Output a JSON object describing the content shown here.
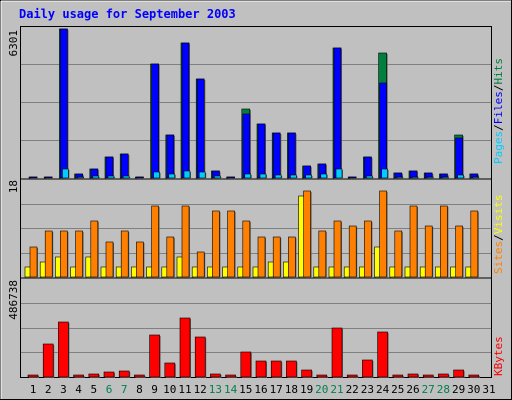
{
  "title": "Daily usage for September 2003",
  "colors": {
    "background": "#c0c0c0",
    "plot": "#c0c0c0",
    "title": "#0000ff",
    "grid": "#808080",
    "pages": "#00ccff",
    "files": "#0000ff",
    "hits": "#007f3f",
    "visits": "#ffff00",
    "sites": "#ff8000",
    "kbytes": "#ff0000",
    "weekend_label": "#00804f",
    "weekday_label": "#000000"
  },
  "labels": {
    "top_max": "6301",
    "mid_max": "18",
    "bottom_max": "486738",
    "legend_pages": "Pages",
    "legend_files": "Files",
    "legend_hits": "Hits",
    "legend_sites": "Sites",
    "legend_visits": "Visits",
    "legend_kbytes": "KBytes",
    "sep": "/"
  },
  "chart_data": {
    "type": "bar",
    "title": "Daily usage for September 2003",
    "categories": [
      "1",
      "2",
      "3",
      "4",
      "5",
      "6",
      "7",
      "8",
      "9",
      "10",
      "11",
      "12",
      "13",
      "14",
      "15",
      "16",
      "17",
      "18",
      "19",
      "20",
      "21",
      "22",
      "23",
      "24",
      "25",
      "26",
      "27",
      "28",
      "29",
      "30",
      "31"
    ],
    "weekend_days": [
      "6",
      "7",
      "13",
      "14",
      "20",
      "21",
      "27",
      "28"
    ],
    "panels": [
      {
        "name": "top",
        "ylim": [
          0,
          6301
        ],
        "series": [
          {
            "name": "Hits",
            "values": [
              60,
              60,
              6301,
              170,
              380,
              890,
              1000,
              60,
              4800,
              1800,
              5700,
              4200,
              300,
              60,
              2900,
              2300,
              1900,
              1900,
              500,
              600,
              5500,
              60,
              900,
              5300,
              200,
              300,
              200,
              150,
              1800,
              150,
              0
            ]
          },
          {
            "name": "Files",
            "values": [
              60,
              60,
              6301,
              170,
              380,
              890,
              1000,
              60,
              4800,
              1800,
              5700,
              4200,
              300,
              60,
              2700,
              2300,
              1900,
              1900,
              500,
              600,
              5500,
              60,
              900,
              4000,
              200,
              300,
              200,
              150,
              1700,
              150,
              0
            ]
          },
          {
            "name": "Pages",
            "values": [
              20,
              20,
              400,
              40,
              70,
              90,
              80,
              20,
              260,
              170,
              300,
              260,
              80,
              20,
              160,
              150,
              130,
              130,
              120,
              150,
              380,
              20,
              80,
              360,
              40,
              50,
              40,
              40,
              110,
              40,
              0
            ]
          }
        ]
      },
      {
        "name": "middle",
        "ylim": [
          0,
          18
        ],
        "series": [
          {
            "name": "Sites",
            "values": [
              6,
              9,
              9,
              9,
              11,
              7,
              9,
              7,
              14,
              8,
              14,
              5,
              13,
              13,
              11,
              8,
              8,
              8,
              17,
              9,
              11,
              10,
              11,
              17,
              9,
              14,
              10,
              14,
              10,
              13,
              0
            ]
          },
          {
            "name": "Visits",
            "values": [
              2,
              3,
              4,
              2,
              4,
              2,
              2,
              2,
              2,
              2,
              4,
              2,
              2,
              2,
              2,
              2,
              3,
              3,
              16,
              2,
              2,
              2,
              2,
              6,
              2,
              2,
              2,
              2,
              2,
              2,
              0
            ]
          }
        ]
      },
      {
        "name": "bottom",
        "ylim": [
          0,
          486738
        ],
        "series": [
          {
            "name": "KBytes",
            "values": [
              6000,
              176000,
              292000,
              6000,
              18000,
              25000,
              30000,
              6000,
              224000,
              75000,
              310000,
              211000,
              18000,
              6000,
              130000,
              86000,
              86000,
              86000,
              35000,
              13000,
              258000,
              6000,
              90000,
              240000,
              6000,
              14000,
              10000,
              14000,
              35000,
              10000,
              0
            ]
          }
        ]
      }
    ]
  }
}
